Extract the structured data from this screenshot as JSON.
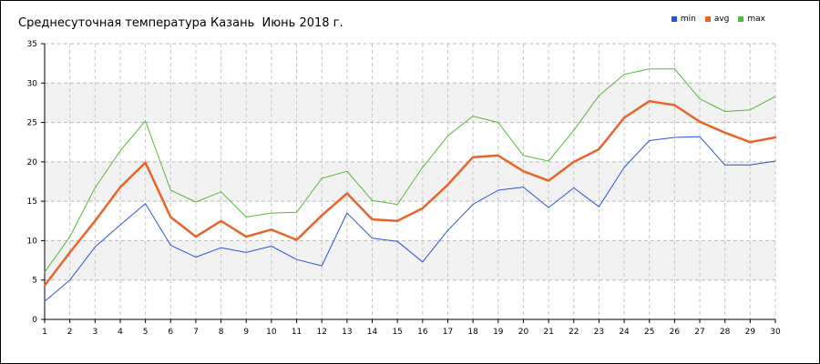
{
  "title": "Среднесуточная температура Казань  Июнь 2018 г.",
  "chart_data": {
    "type": "line",
    "title": "Среднесуточная температура Казань  Июнь 2018 г.",
    "xlabel": "",
    "ylabel": "",
    "x": [
      1,
      2,
      3,
      4,
      5,
      6,
      7,
      8,
      9,
      10,
      11,
      12,
      13,
      14,
      15,
      16,
      17,
      18,
      19,
      20,
      21,
      22,
      23,
      24,
      25,
      26,
      27,
      28,
      29,
      30
    ],
    "xlim": [
      1,
      30
    ],
    "ylim": [
      0,
      35
    ],
    "yticks": [
      0,
      5,
      10,
      15,
      20,
      25,
      30,
      35
    ],
    "grid": true,
    "band_fill": "#f2f2f2",
    "legend_position": "top-right",
    "series": [
      {
        "name": "min",
        "color": "#2b54d6",
        "width": 1,
        "values": [
          2.3,
          5.0,
          9.2,
          12.0,
          14.7,
          9.4,
          7.9,
          9.1,
          8.5,
          9.3,
          7.6,
          6.8,
          13.5,
          10.3,
          9.9,
          7.3,
          11.3,
          14.6,
          16.4,
          16.8,
          14.2,
          16.7,
          14.3,
          19.3,
          22.7,
          23.1,
          23.2,
          19.6,
          19.6,
          20.1
        ]
      },
      {
        "name": "avg",
        "color": "#e8642a",
        "width": 2.5,
        "values": [
          4.3,
          8.5,
          12.5,
          16.8,
          19.9,
          13.0,
          10.5,
          12.5,
          10.5,
          11.4,
          10.1,
          13.2,
          16.0,
          12.7,
          12.5,
          14.1,
          17.1,
          20.6,
          20.8,
          18.8,
          17.6,
          20.0,
          21.6,
          25.6,
          27.7,
          27.2,
          25.1,
          23.7,
          22.5,
          23.1
        ]
      },
      {
        "name": "max",
        "color": "#5ab53c",
        "width": 1,
        "values": [
          6.0,
          10.5,
          16.7,
          21.4,
          25.2,
          16.4,
          14.9,
          16.2,
          13.0,
          13.5,
          13.6,
          17.9,
          18.8,
          15.1,
          14.6,
          19.3,
          23.3,
          25.8,
          25.0,
          20.8,
          20.1,
          24.0,
          28.4,
          31.1,
          31.8,
          31.8,
          28.0,
          26.4,
          26.6,
          28.3
        ]
      }
    ]
  }
}
